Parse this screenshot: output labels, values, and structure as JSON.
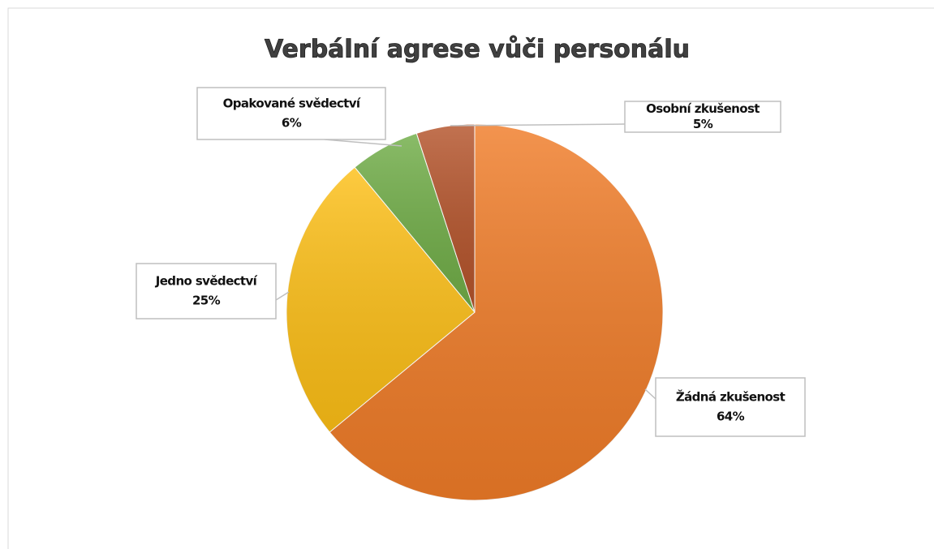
{
  "chart_data": {
    "type": "pie",
    "title": "Verbální agrese vůči personálu",
    "categories": [
      "Žádná zkušenost",
      "Jedno svědectví",
      "Opakované svědectví",
      "Osobní zkušenost"
    ],
    "values": [
      64,
      25,
      6,
      5
    ],
    "value_labels": [
      "64%",
      "25%",
      "6%",
      "5%"
    ],
    "colors": [
      "#f07c28",
      "#fdbf16",
      "#70ad47",
      "#b4532a"
    ]
  }
}
